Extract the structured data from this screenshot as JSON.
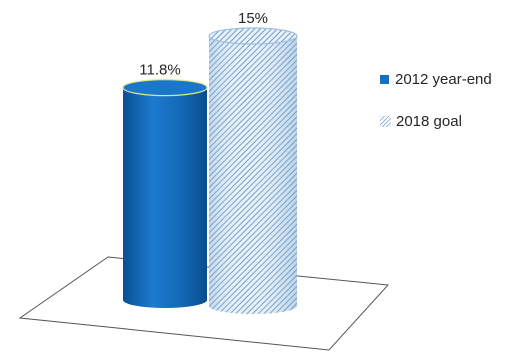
{
  "chart_data": {
    "type": "bar",
    "style": "3d-cylinder",
    "categories": [
      ""
    ],
    "series": [
      {
        "name": "2012 year-end",
        "values": [
          11.8
        ],
        "label": "11.8%",
        "color": "#1570c0",
        "pattern": "solid"
      },
      {
        "name": "2018 goal",
        "values": [
          15
        ],
        "label": "15%",
        "color": "#b9d3ea",
        "pattern": "diagonal-hatch"
      }
    ],
    "ylim": [
      0,
      15
    ],
    "grid": false,
    "legend_position": "right"
  }
}
